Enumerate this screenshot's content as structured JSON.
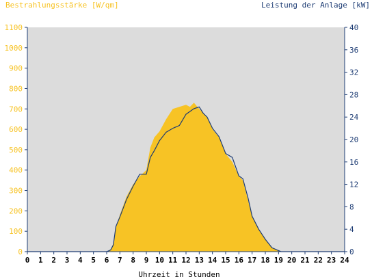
{
  "chart_data": {
    "type": "area",
    "title_left": "Bestrahlungsstärke [W/qm]",
    "title_right": "Leistung der Anlage [kW]",
    "xlabel": "Uhrzeit in Stunden",
    "x_ticks": [
      "0",
      "1",
      "2",
      "3",
      "4",
      "5",
      "6",
      "7",
      "8",
      "9",
      "10",
      "11",
      "12",
      "13",
      "14",
      "15",
      "16",
      "17",
      "18",
      "19",
      "20",
      "21",
      "22",
      "23",
      "24"
    ],
    "xlim": [
      0,
      24
    ],
    "y_left_ticks": [
      "0",
      "100",
      "200",
      "300",
      "400",
      "500",
      "600",
      "700",
      "800",
      "900",
      "1000",
      "1100"
    ],
    "y_left_lim": [
      0,
      1100
    ],
    "y_right_ticks": [
      "0",
      "4",
      "8",
      "12",
      "16",
      "20",
      "24",
      "28",
      "32",
      "36",
      "40"
    ],
    "y_right_lim": [
      0,
      40
    ],
    "grid": false,
    "colors": {
      "irradiance": "#f7c325",
      "power": "#1c3b73",
      "plot_bg": "#dcdcdc",
      "axis": "#1c3b73"
    },
    "series": [
      {
        "axis": "left",
        "style": "area",
        "x": [
          0,
          6.0,
          6.3,
          6.5,
          6.7,
          7.0,
          7.5,
          8.0,
          8.5,
          9.0,
          9.3,
          9.6,
          10.0,
          10.5,
          11.0,
          11.5,
          12.0,
          12.3,
          12.6,
          13.0,
          13.3,
          13.6,
          14.0,
          14.5,
          15.0,
          15.5,
          16.0,
          16.3,
          16.7,
          17.0,
          17.5,
          18.0,
          18.5,
          19.0,
          19.2,
          24
        ],
        "values": [
          0,
          0,
          10,
          40,
          120,
          180,
          270,
          330,
          370,
          400,
          510,
          560,
          590,
          650,
          700,
          710,
          720,
          710,
          730,
          700,
          680,
          660,
          600,
          560,
          480,
          440,
          370,
          350,
          250,
          170,
          110,
          60,
          20,
          5,
          0,
          0
        ]
      },
      {
        "axis": "right",
        "style": "line",
        "x": [
          0,
          6.0,
          6.3,
          6.5,
          6.7,
          7.0,
          7.5,
          8.0,
          8.5,
          9.0,
          9.3,
          9.6,
          10.0,
          10.5,
          11.0,
          11.5,
          12.0,
          12.3,
          12.6,
          13.0,
          13.3,
          13.6,
          14.0,
          14.5,
          15.0,
          15.5,
          16.0,
          16.3,
          16.7,
          17.0,
          17.5,
          18.0,
          18.5,
          19.0,
          19.2,
          24
        ],
        "values": [
          0,
          0,
          0.3,
          1.2,
          4.5,
          6.2,
          9.3,
          11.7,
          13.8,
          13.8,
          16.8,
          18.0,
          19.8,
          21.3,
          22.0,
          22.5,
          24.5,
          25.0,
          25.5,
          25.8,
          24.7,
          24.0,
          22.0,
          20.5,
          17.5,
          16.8,
          13.5,
          13.0,
          9.5,
          6.3,
          4.0,
          2.2,
          0.7,
          0.2,
          0,
          0
        ]
      }
    ]
  }
}
